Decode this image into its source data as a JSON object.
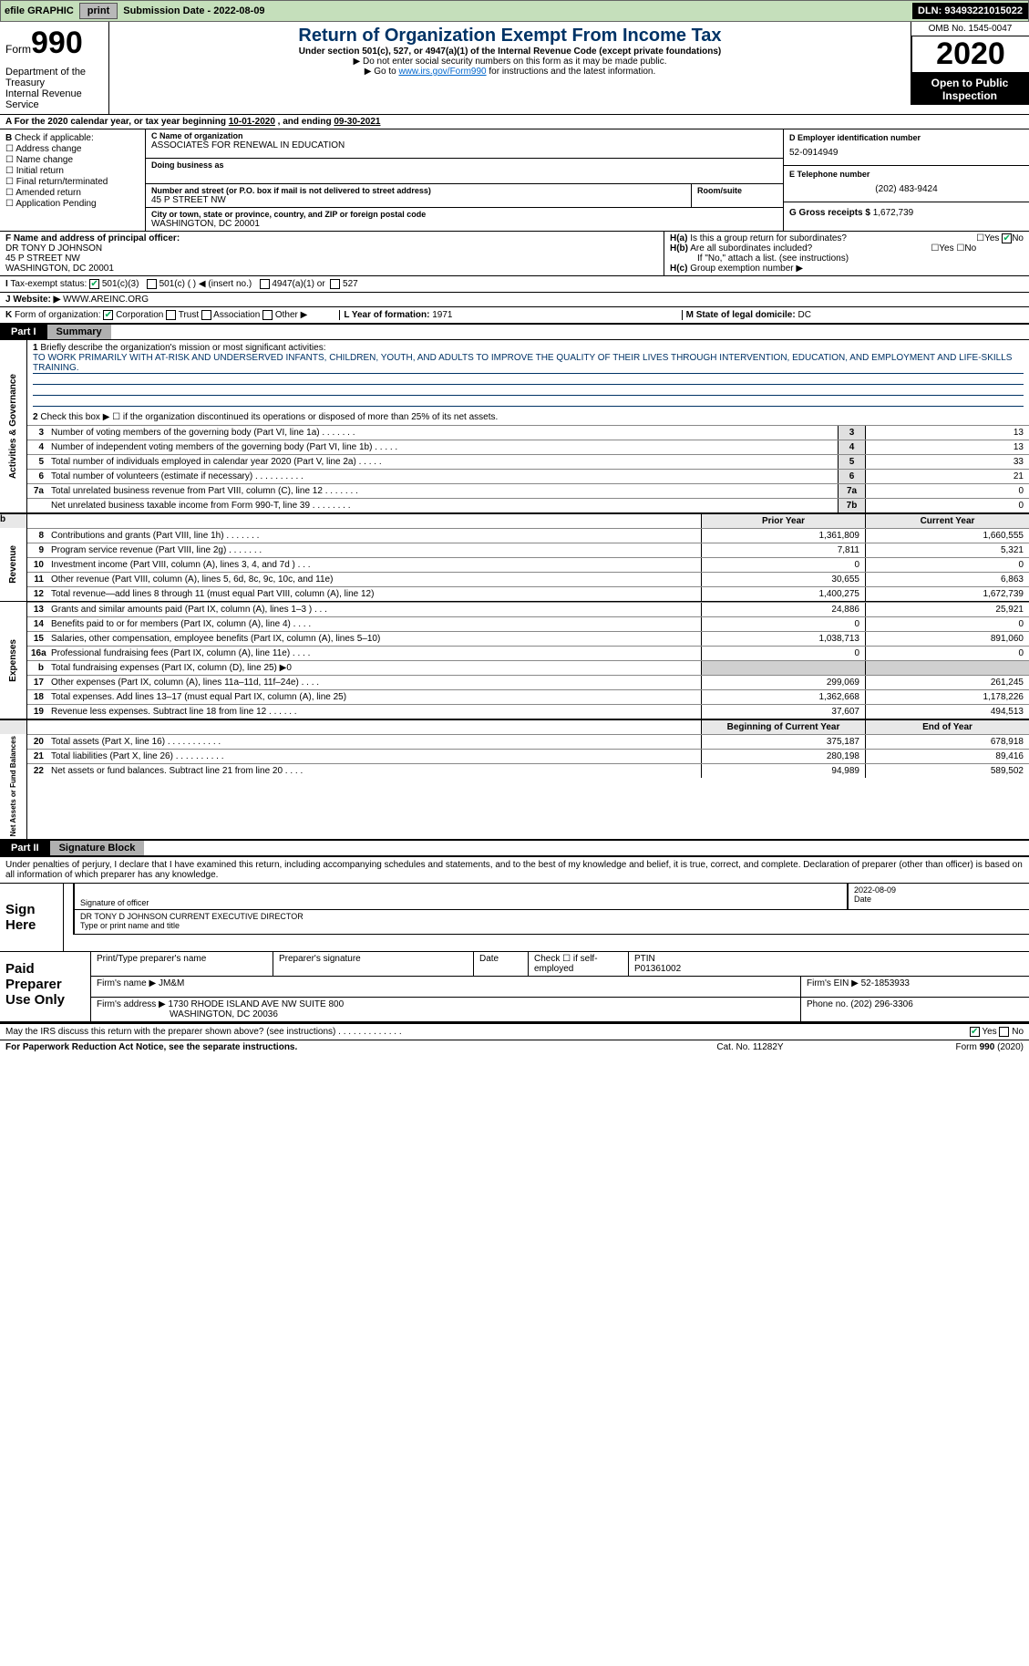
{
  "toolbar": {
    "efile": "efile GRAPHIC",
    "print": "print",
    "sub_label": "Submission Date - ",
    "sub_date": "2022-08-09",
    "dln_label": "DLN: ",
    "dln": "93493221015022"
  },
  "header": {
    "form_word": "Form",
    "form_num": "990",
    "title": "Return of Organization Exempt From Income Tax",
    "subtitle": "Under section 501(c), 527, or 4947(a)(1) of the Internal Revenue Code (except private foundations)",
    "hint1": "▶ Do not enter social security numbers on this form as it may be made public.",
    "hint2_pre": "▶ Go to ",
    "hint2_link": "www.irs.gov/Form990",
    "hint2_post": " for instructions and the latest information.",
    "dept1": "Department of the Treasury",
    "dept2": "Internal Revenue Service",
    "omb": "OMB No. 1545-0047",
    "year": "2020",
    "open": "Open to Public Inspection"
  },
  "line_a": {
    "label": "For the 2020 calendar year, or tax year beginning ",
    "begin": "10-01-2020",
    "mid": " , and ending ",
    "end": "09-30-2021"
  },
  "section_b": {
    "label": "Check if applicable:",
    "opts": [
      "Address change",
      "Name change",
      "Initial return",
      "Final return/terminated",
      "Amended return",
      "Application Pending"
    ]
  },
  "org": {
    "c_label": "Name of organization",
    "c_name": "ASSOCIATES FOR RENEWAL IN EDUCATION",
    "dba_label": "Doing business as",
    "addr_label": "Number and street (or P.O. box if mail is not delivered to street address)",
    "room_label": "Room/suite",
    "addr": "45 P STREET NW",
    "city_label": "City or town, state or province, country, and ZIP or foreign postal code",
    "city": "WASHINGTON, DC  20001"
  },
  "right": {
    "d_label": "D Employer identification number",
    "d_val": "52-0914949",
    "e_label": "E Telephone number",
    "e_val": "(202) 483-9424",
    "g_label": "G Gross receipts $ ",
    "g_val": "1,672,739"
  },
  "f": {
    "label": "F Name and address of principal officer:",
    "name": "DR TONY D JOHNSON",
    "addr1": "45 P STREET NW",
    "addr2": "WASHINGTON, DC  20001"
  },
  "h": {
    "a_label": "Is this a group return for subordinates?",
    "a_no": true,
    "b_label": "Are all subordinates included?",
    "b_note": "If \"No,\" attach a list. (see instructions)",
    "c_label": "Group exemption number ▶"
  },
  "i": {
    "label": "Tax-exempt status:",
    "o1": "501(c)(3)",
    "o2": "501(c) (  ) ◀ (insert no.)",
    "o3": "4947(a)(1) or",
    "o4": "527"
  },
  "j": {
    "label": "Website: ▶",
    "val": "WWW.AREINC.ORG"
  },
  "k": {
    "label": "Form of organization:",
    "corp": "Corporation",
    "trust": "Trust",
    "assoc": "Association",
    "other": "Other ▶",
    "l_label": "L Year of formation: ",
    "l_val": "1971",
    "m_label": "M State of legal domicile: ",
    "m_val": "DC"
  },
  "part1": {
    "tag": "Part I",
    "title": "Summary",
    "q1_label": "Briefly describe the organization's mission or most significant activities:",
    "q1_text": "TO WORK PRIMARILY WITH AT-RISK AND UNDERSERVED INFANTS, CHILDREN, YOUTH, AND ADULTS TO IMPROVE THE QUALITY OF THEIR LIVES THROUGH INTERVENTION, EDUCATION, AND EMPLOYMENT AND LIFE-SKILLS TRAINING.",
    "q2": "Check this box ▶ ☐  if the organization discontinued its operations or disposed of more than 25% of its net assets.",
    "side_gov": "Activities & Governance",
    "rows_gov": [
      {
        "n": "3",
        "d": "Number of voting members of the governing body (Part VI, line 1a)  .    .    .    .    .    .    .",
        "b": "3",
        "v": "13"
      },
      {
        "n": "4",
        "d": "Number of independent voting members of the governing body (Part VI, line 1b)  .    .    .    .    .",
        "b": "4",
        "v": "13"
      },
      {
        "n": "5",
        "d": "Total number of individuals employed in calendar year 2020 (Part V, line 2a)  .    .    .    .    .",
        "b": "5",
        "v": "33"
      },
      {
        "n": "6",
        "d": "Total number of volunteers (estimate if necessary)  .    .    .    .    .    .    .    .    .    .",
        "b": "6",
        "v": "21"
      },
      {
        "n": "7a",
        "d": "Total unrelated business revenue from Part VIII, column (C), line 12  .    .    .    .    .    .    .",
        "b": "7a",
        "v": "0"
      },
      {
        "n": "",
        "d": "Net unrelated business taxable income from Form 990-T, line 39  .    .    .    .    .    .    .    .",
        "b": "7b",
        "v": "0"
      }
    ],
    "fin_header": {
      "py": "Prior Year",
      "cy": "Current Year"
    },
    "side_rev": "Revenue",
    "rows_rev": [
      {
        "n": "8",
        "d": "Contributions and grants (Part VIII, line 1h)  .    .    .    .    .    .    .",
        "c1": "1,361,809",
        "c2": "1,660,555"
      },
      {
        "n": "9",
        "d": "Program service revenue (Part VIII, line 2g)  .    .    .    .    .    .    .",
        "c1": "7,811",
        "c2": "5,321"
      },
      {
        "n": "10",
        "d": "Investment income (Part VIII, column (A), lines 3, 4, and 7d )  .    .    .",
        "c1": "0",
        "c2": "0"
      },
      {
        "n": "11",
        "d": "Other revenue (Part VIII, column (A), lines 5, 6d, 8c, 9c, 10c, and 11e)",
        "c1": "30,655",
        "c2": "6,863"
      },
      {
        "n": "12",
        "d": "Total revenue—add lines 8 through 11 (must equal Part VIII, column (A), line 12)",
        "c1": "1,400,275",
        "c2": "1,672,739"
      }
    ],
    "side_exp": "Expenses",
    "rows_exp": [
      {
        "n": "13",
        "d": "Grants and similar amounts paid (Part IX, column (A), lines 1–3 )  .    .    .",
        "c1": "24,886",
        "c2": "25,921"
      },
      {
        "n": "14",
        "d": "Benefits paid to or for members (Part IX, column (A), line 4)  .    .    .    .",
        "c1": "0",
        "c2": "0"
      },
      {
        "n": "15",
        "d": "Salaries, other compensation, employee benefits (Part IX, column (A), lines 5–10)",
        "c1": "1,038,713",
        "c2": "891,060"
      },
      {
        "n": "16a",
        "d": "Professional fundraising fees (Part IX, column (A), line 11e)  .    .    .    .",
        "c1": "0",
        "c2": "0"
      },
      {
        "n": "b",
        "d": "Total fundraising expenses (Part IX, column (D), line 25) ▶0",
        "c1": "",
        "c2": "",
        "shade": true
      },
      {
        "n": "17",
        "d": "Other expenses (Part IX, column (A), lines 11a–11d, 11f–24e)  .    .    .    .",
        "c1": "299,069",
        "c2": "261,245"
      },
      {
        "n": "18",
        "d": "Total expenses. Add lines 13–17 (must equal Part IX, column (A), line 25)",
        "c1": "1,362,668",
        "c2": "1,178,226"
      },
      {
        "n": "19",
        "d": "Revenue less expenses. Subtract line 18 from line 12  .    .    .    .    .    .",
        "c1": "37,607",
        "c2": "494,513"
      }
    ],
    "na_header": {
      "py": "Beginning of Current Year",
      "cy": "End of Year"
    },
    "side_na": "Net Assets or Fund Balances",
    "rows_na": [
      {
        "n": "20",
        "d": "Total assets (Part X, line 16)  .    .    .    .    .    .    .    .    .    .    .",
        "c1": "375,187",
        "c2": "678,918"
      },
      {
        "n": "21",
        "d": "Total liabilities (Part X, line 26)  .    .    .    .    .    .    .    .    .    .",
        "c1": "280,198",
        "c2": "89,416"
      },
      {
        "n": "22",
        "d": "Net assets or fund balances. Subtract line 21 from line 20  .    .    .    .",
        "c1": "94,989",
        "c2": "589,502"
      }
    ]
  },
  "part2": {
    "tag": "Part II",
    "title": "Signature Block",
    "intro": "Under penalties of perjury, I declare that I have examined this return, including accompanying schedules and statements, and to the best of my knowledge and belief, it is true, correct, and complete. Declaration of preparer (other than officer) is based on all information of which preparer has any knowledge.",
    "sign_here": "Sign Here",
    "sig_officer": "Signature of officer",
    "sig_date": "2022-08-09",
    "date_label": "Date",
    "officer_name": "DR TONY D JOHNSON  CURRENT EXECUTIVE DIRECTOR",
    "officer_type": "Type or print name and title",
    "paid_label": "Paid Preparer Use Only",
    "h1": "Print/Type preparer's name",
    "h2": "Preparer's signature",
    "h3": "Date",
    "h4": "Check ☐ if self-employed",
    "h5_label": "PTIN",
    "h5": "P01361002",
    "firm_name_label": "Firm's name    ▶ ",
    "firm_name": "JM&M",
    "firm_ein_label": "Firm's EIN ▶ ",
    "firm_ein": "52-1853933",
    "firm_addr_label": "Firm's address ▶ ",
    "firm_addr1": "1730 RHODE ISLAND AVE NW SUITE 800",
    "firm_addr2": "WASHINGTON, DC  20036",
    "phone_label": "Phone no. ",
    "phone": "(202) 296-3306",
    "discuss": "May the IRS discuss this return with the preparer shown above? (see instructions)  .    .    .    .    .    .    .    .    .    .    .    .    ."
  },
  "footer": {
    "l": "For Paperwork Reduction Act Notice, see the separate instructions.",
    "m": "Cat. No. 11282Y",
    "r": "Form 990 (2020)"
  },
  "colors": {
    "green_bg": "#c5dfbb",
    "blue_text": "#003366",
    "link": "#0066cc"
  }
}
